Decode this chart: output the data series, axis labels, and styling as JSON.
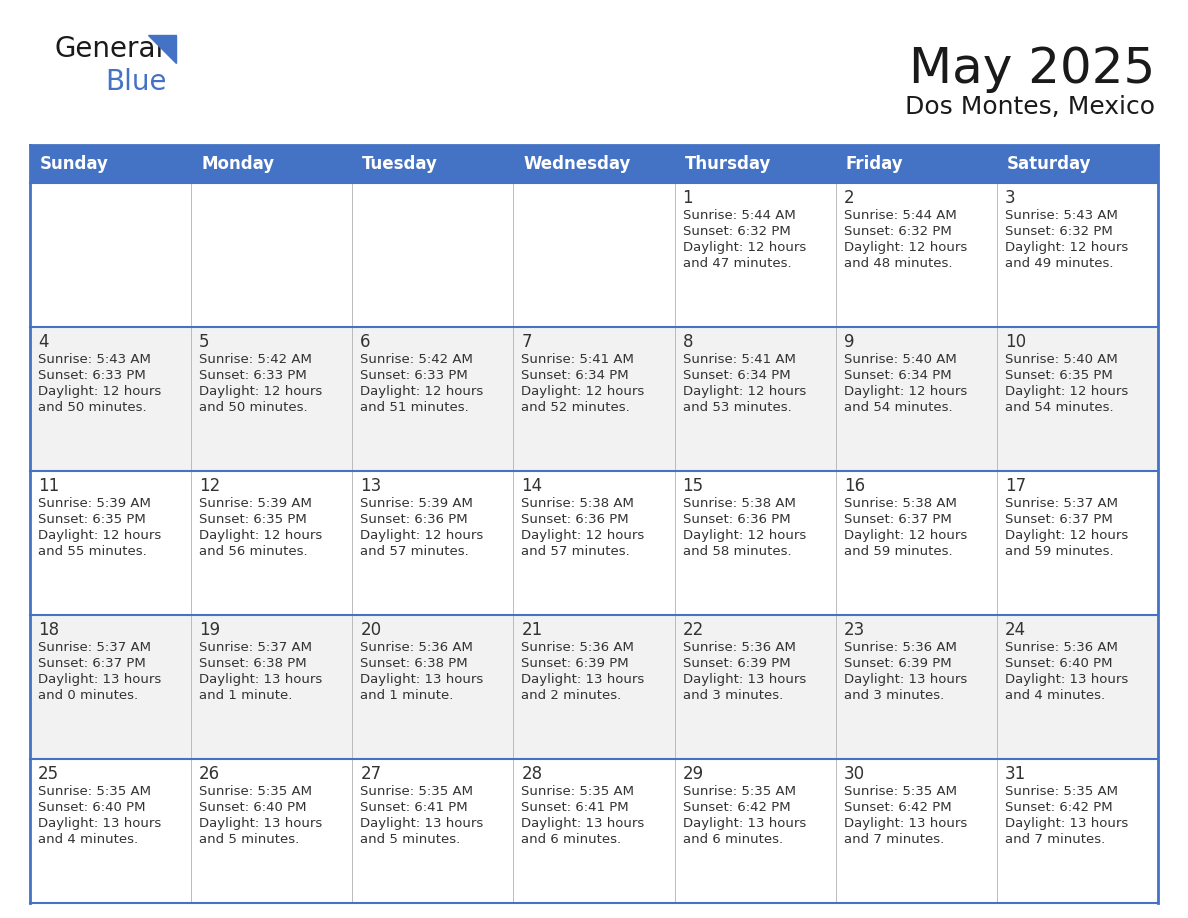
{
  "title": "May 2025",
  "subtitle": "Dos Montes, Mexico",
  "days_of_week": [
    "Sunday",
    "Monday",
    "Tuesday",
    "Wednesday",
    "Thursday",
    "Friday",
    "Saturday"
  ],
  "header_bg": "#4472C4",
  "header_text": "#FFFFFF",
  "bg_color": "#FFFFFF",
  "grid_color": "#4472C4",
  "cell_bg_even": "#FFFFFF",
  "cell_bg_odd": "#F2F2F2",
  "day_text_color": "#333333",
  "calendar_data": [
    [
      null,
      null,
      null,
      null,
      {
        "day": "1",
        "sunrise": "5:44 AM",
        "sunset": "6:32 PM",
        "daylight_h": "12 hours",
        "daylight_m": "and 47 minutes."
      },
      {
        "day": "2",
        "sunrise": "5:44 AM",
        "sunset": "6:32 PM",
        "daylight_h": "12 hours",
        "daylight_m": "and 48 minutes."
      },
      {
        "day": "3",
        "sunrise": "5:43 AM",
        "sunset": "6:32 PM",
        "daylight_h": "12 hours",
        "daylight_m": "and 49 minutes."
      }
    ],
    [
      {
        "day": "4",
        "sunrise": "5:43 AM",
        "sunset": "6:33 PM",
        "daylight_h": "12 hours",
        "daylight_m": "and 50 minutes."
      },
      {
        "day": "5",
        "sunrise": "5:42 AM",
        "sunset": "6:33 PM",
        "daylight_h": "12 hours",
        "daylight_m": "and 50 minutes."
      },
      {
        "day": "6",
        "sunrise": "5:42 AM",
        "sunset": "6:33 PM",
        "daylight_h": "12 hours",
        "daylight_m": "and 51 minutes."
      },
      {
        "day": "7",
        "sunrise": "5:41 AM",
        "sunset": "6:34 PM",
        "daylight_h": "12 hours",
        "daylight_m": "and 52 minutes."
      },
      {
        "day": "8",
        "sunrise": "5:41 AM",
        "sunset": "6:34 PM",
        "daylight_h": "12 hours",
        "daylight_m": "and 53 minutes."
      },
      {
        "day": "9",
        "sunrise": "5:40 AM",
        "sunset": "6:34 PM",
        "daylight_h": "12 hours",
        "daylight_m": "and 54 minutes."
      },
      {
        "day": "10",
        "sunrise": "5:40 AM",
        "sunset": "6:35 PM",
        "daylight_h": "12 hours",
        "daylight_m": "and 54 minutes."
      }
    ],
    [
      {
        "day": "11",
        "sunrise": "5:39 AM",
        "sunset": "6:35 PM",
        "daylight_h": "12 hours",
        "daylight_m": "and 55 minutes."
      },
      {
        "day": "12",
        "sunrise": "5:39 AM",
        "sunset": "6:35 PM",
        "daylight_h": "12 hours",
        "daylight_m": "and 56 minutes."
      },
      {
        "day": "13",
        "sunrise": "5:39 AM",
        "sunset": "6:36 PM",
        "daylight_h": "12 hours",
        "daylight_m": "and 57 minutes."
      },
      {
        "day": "14",
        "sunrise": "5:38 AM",
        "sunset": "6:36 PM",
        "daylight_h": "12 hours",
        "daylight_m": "and 57 minutes."
      },
      {
        "day": "15",
        "sunrise": "5:38 AM",
        "sunset": "6:36 PM",
        "daylight_h": "12 hours",
        "daylight_m": "and 58 minutes."
      },
      {
        "day": "16",
        "sunrise": "5:38 AM",
        "sunset": "6:37 PM",
        "daylight_h": "12 hours",
        "daylight_m": "and 59 minutes."
      },
      {
        "day": "17",
        "sunrise": "5:37 AM",
        "sunset": "6:37 PM",
        "daylight_h": "12 hours",
        "daylight_m": "and 59 minutes."
      }
    ],
    [
      {
        "day": "18",
        "sunrise": "5:37 AM",
        "sunset": "6:37 PM",
        "daylight_h": "13 hours",
        "daylight_m": "and 0 minutes."
      },
      {
        "day": "19",
        "sunrise": "5:37 AM",
        "sunset": "6:38 PM",
        "daylight_h": "13 hours",
        "daylight_m": "and 1 minute."
      },
      {
        "day": "20",
        "sunrise": "5:36 AM",
        "sunset": "6:38 PM",
        "daylight_h": "13 hours",
        "daylight_m": "and 1 minute."
      },
      {
        "day": "21",
        "sunrise": "5:36 AM",
        "sunset": "6:39 PM",
        "daylight_h": "13 hours",
        "daylight_m": "and 2 minutes."
      },
      {
        "day": "22",
        "sunrise": "5:36 AM",
        "sunset": "6:39 PM",
        "daylight_h": "13 hours",
        "daylight_m": "and 3 minutes."
      },
      {
        "day": "23",
        "sunrise": "5:36 AM",
        "sunset": "6:39 PM",
        "daylight_h": "13 hours",
        "daylight_m": "and 3 minutes."
      },
      {
        "day": "24",
        "sunrise": "5:36 AM",
        "sunset": "6:40 PM",
        "daylight_h": "13 hours",
        "daylight_m": "and 4 minutes."
      }
    ],
    [
      {
        "day": "25",
        "sunrise": "5:35 AM",
        "sunset": "6:40 PM",
        "daylight_h": "13 hours",
        "daylight_m": "and 4 minutes."
      },
      {
        "day": "26",
        "sunrise": "5:35 AM",
        "sunset": "6:40 PM",
        "daylight_h": "13 hours",
        "daylight_m": "and 5 minutes."
      },
      {
        "day": "27",
        "sunrise": "5:35 AM",
        "sunset": "6:41 PM",
        "daylight_h": "13 hours",
        "daylight_m": "and 5 minutes."
      },
      {
        "day": "28",
        "sunrise": "5:35 AM",
        "sunset": "6:41 PM",
        "daylight_h": "13 hours",
        "daylight_m": "and 6 minutes."
      },
      {
        "day": "29",
        "sunrise": "5:35 AM",
        "sunset": "6:42 PM",
        "daylight_h": "13 hours",
        "daylight_m": "and 6 minutes."
      },
      {
        "day": "30",
        "sunrise": "5:35 AM",
        "sunset": "6:42 PM",
        "daylight_h": "13 hours",
        "daylight_m": "and 7 minutes."
      },
      {
        "day": "31",
        "sunrise": "5:35 AM",
        "sunset": "6:42 PM",
        "daylight_h": "13 hours",
        "daylight_m": "and 7 minutes."
      }
    ]
  ]
}
